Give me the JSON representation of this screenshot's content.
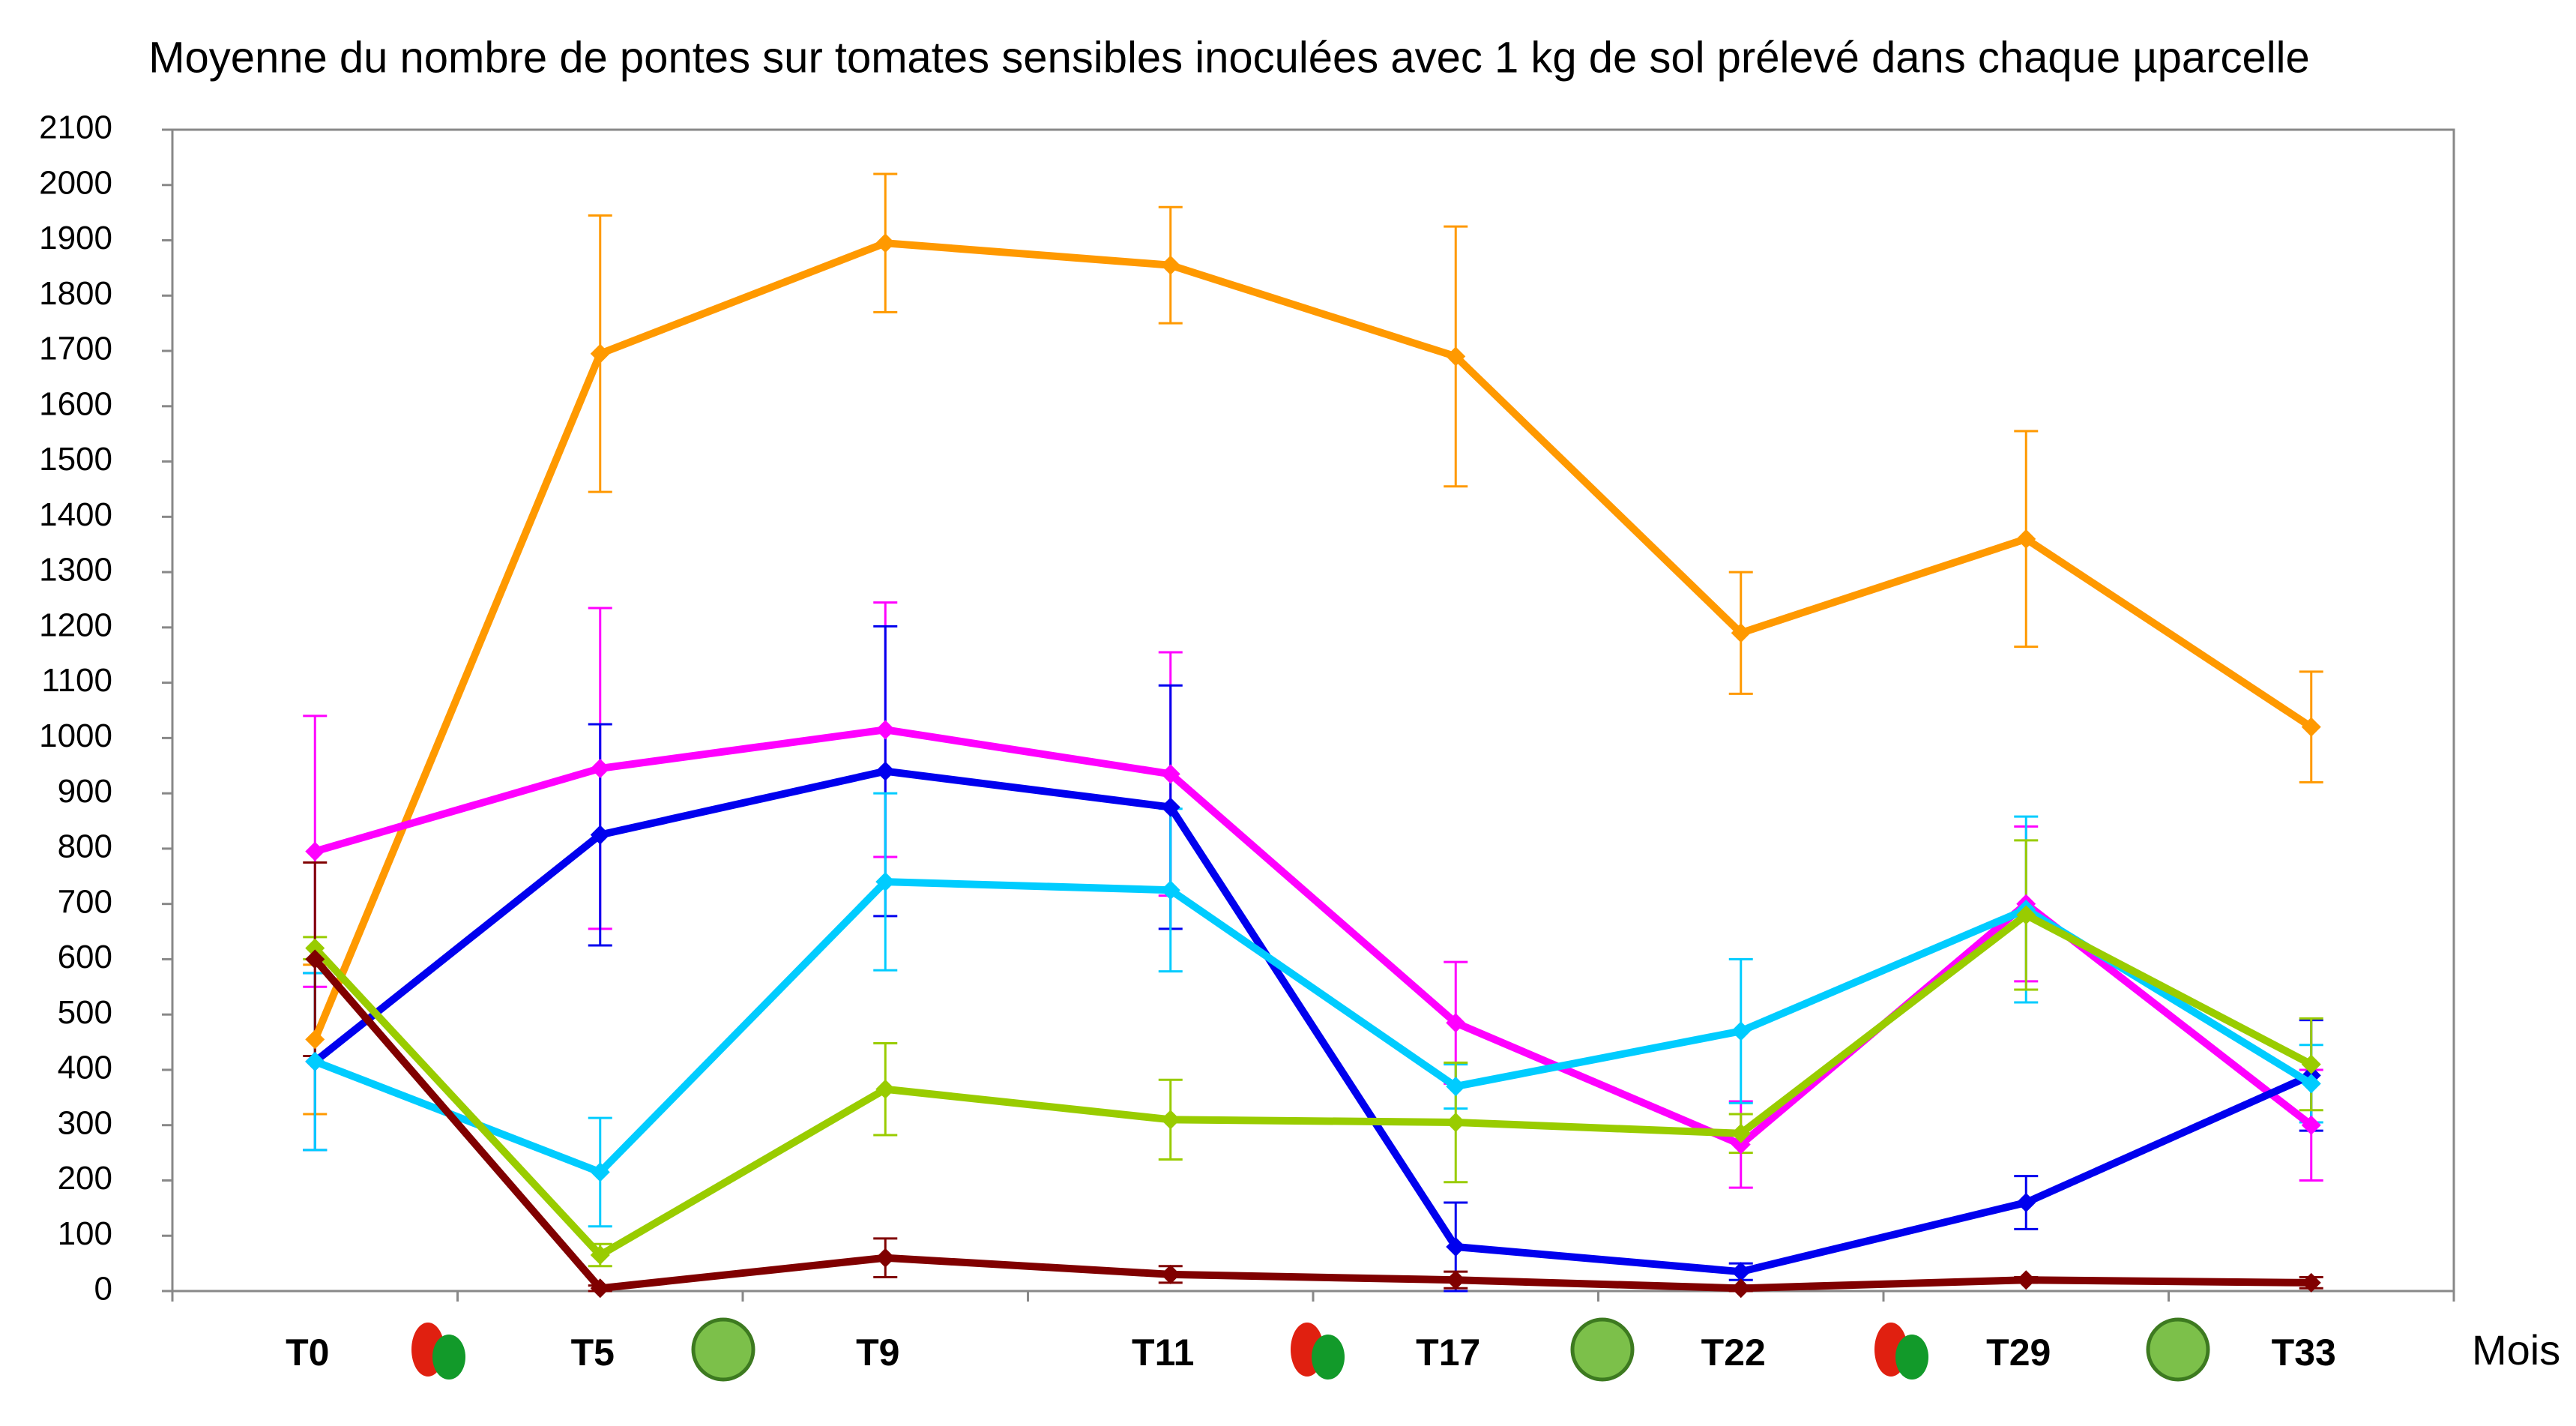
{
  "chart_data": {
    "type": "line",
    "subtitle": "Moyenne du nombre de pontes sur  tomates sensibles inoculées avec 1 kg de sol prélevé dans chaque µparcelle",
    "x_label": "Mois",
    "categories": [
      "T0",
      "T5",
      "T9",
      "T11",
      "T17",
      "T22",
      "T29",
      "T33"
    ],
    "ylim": [
      0,
      2100
    ],
    "yticks": [
      0,
      100,
      200,
      300,
      400,
      500,
      600,
      700,
      800,
      900,
      1000,
      1100,
      1200,
      1300,
      1400,
      1500,
      1600,
      1700,
      1800,
      1900,
      2000,
      2100
    ],
    "series": [
      {
        "color": "#ff9900",
        "values": [
          455,
          1695,
          1895,
          1855,
          1690,
          1190,
          1360,
          1020
        ],
        "errors": [
          135,
          250,
          125,
          105,
          235,
          110,
          195,
          100
        ]
      },
      {
        "color": "#ff00ff",
        "values": [
          795,
          945,
          1015,
          935,
          485,
          265,
          700,
          300
        ],
        "errors": [
          245,
          290,
          230,
          220,
          110,
          78,
          140,
          100
        ]
      },
      {
        "color": "#0000ee",
        "values": [
          415,
          825,
          940,
          875,
          80,
          35,
          160,
          390
        ],
        "errors": [
          160,
          200,
          262,
          220,
          80,
          15,
          48,
          100
        ]
      },
      {
        "color": "#00ccff",
        "values": [
          415,
          215,
          740,
          725,
          370,
          470,
          690,
          375
        ],
        "errors": [
          160,
          98,
          160,
          147,
          40,
          130,
          168,
          70
        ]
      },
      {
        "color": "#99cc00",
        "values": [
          620,
          65,
          365,
          310,
          305,
          285,
          680,
          410
        ],
        "errors": [
          20,
          20,
          83,
          72,
          108,
          35,
          135,
          83
        ]
      },
      {
        "color": "#800000",
        "values": [
          600,
          5,
          60,
          30,
          20,
          5,
          20,
          15
        ],
        "errors": [
          175,
          5,
          35,
          15,
          15,
          5,
          5,
          10
        ]
      }
    ]
  }
}
